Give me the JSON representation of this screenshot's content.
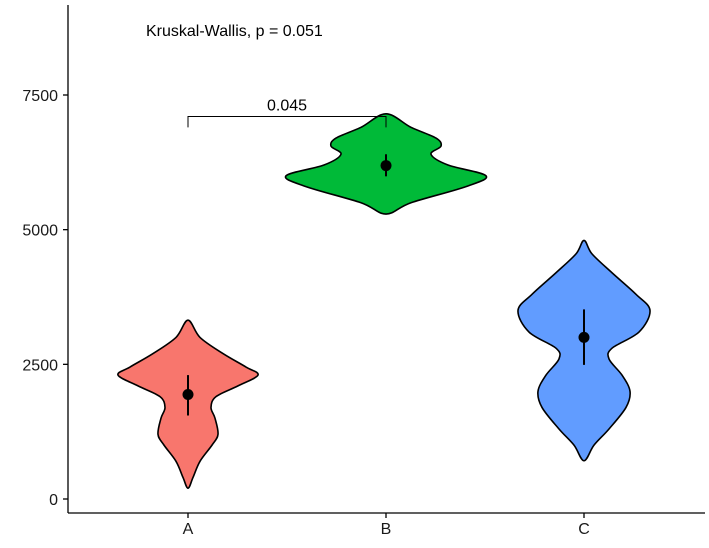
{
  "chart_data": {
    "type": "violin",
    "categories": [
      "A",
      "B",
      "C"
    ],
    "ylim": [
      -300,
      9300
    ],
    "yticks": [
      0,
      2500,
      5000,
      7500
    ],
    "ytick_labels": [
      "0",
      "2500",
      "5000",
      "7500"
    ],
    "xlabel": "",
    "ylabel": "",
    "title": "",
    "grid": false,
    "legend": "none",
    "annotation": "Kruskal-Wallis, p = 0.051",
    "comparisons": [
      {
        "from": "A",
        "to": "B",
        "label": "0.045",
        "y": 7100,
        "tick_bottom": 6900
      }
    ],
    "series": [
      {
        "category": "A",
        "color": "#F8766D",
        "point": 1940,
        "range": [
          1550,
          2300
        ],
        "density": [
          [
            200,
            0
          ],
          [
            400,
            5
          ],
          [
            700,
            12
          ],
          [
            1000,
            24
          ],
          [
            1200,
            30
          ],
          [
            1500,
            27
          ],
          [
            1700,
            23
          ],
          [
            1900,
            28
          ],
          [
            2100,
            50
          ],
          [
            2300,
            70
          ],
          [
            2450,
            58
          ],
          [
            2700,
            35
          ],
          [
            3000,
            12
          ],
          [
            3320,
            0
          ]
        ]
      },
      {
        "category": "B",
        "color": "#00BA38",
        "point": 6190,
        "range": [
          5990,
          6400
        ],
        "density": [
          [
            5290,
            0
          ],
          [
            5500,
            25
          ],
          [
            5800,
            80
          ],
          [
            6000,
            100
          ],
          [
            6200,
            62
          ],
          [
            6400,
            45
          ],
          [
            6550,
            55
          ],
          [
            6700,
            50
          ],
          [
            6900,
            25
          ],
          [
            7150,
            0
          ]
        ]
      },
      {
        "category": "C",
        "color": "#619CFF",
        "point": 3000,
        "range": [
          2490,
          3520
        ],
        "density": [
          [
            710,
            0
          ],
          [
            1000,
            10
          ],
          [
            1300,
            25
          ],
          [
            1700,
            42
          ],
          [
            2000,
            46
          ],
          [
            2300,
            38
          ],
          [
            2600,
            25
          ],
          [
            2800,
            28
          ],
          [
            3100,
            55
          ],
          [
            3500,
            66
          ],
          [
            3800,
            52
          ],
          [
            4200,
            28
          ],
          [
            4550,
            8
          ],
          [
            4800,
            0
          ]
        ]
      }
    ]
  }
}
